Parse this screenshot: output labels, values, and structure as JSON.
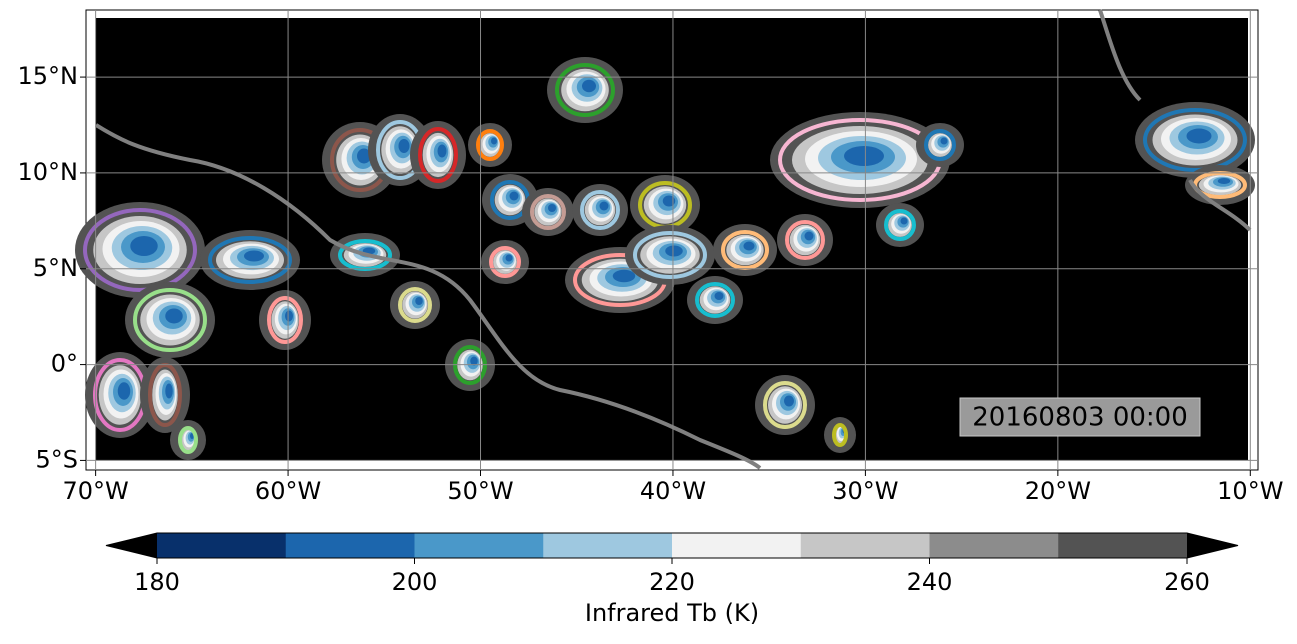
{
  "map": {
    "xlim": [
      -70.5,
      -9.6
    ],
    "ylim": [
      -5.5,
      18.5
    ],
    "xticks": [
      {
        "value": -70,
        "label": "70°W"
      },
      {
        "value": -60,
        "label": "60°W"
      },
      {
        "value": -50,
        "label": "50°W"
      },
      {
        "value": -40,
        "label": "40°W"
      },
      {
        "value": -30,
        "label": "30°W"
      },
      {
        "value": -20,
        "label": "20°W"
      },
      {
        "value": -10,
        "label": "10°W"
      }
    ],
    "yticks": [
      {
        "value": 15,
        "label": "15°N"
      },
      {
        "value": 10,
        "label": "10°N"
      },
      {
        "value": 5,
        "label": "5°N"
      },
      {
        "value": 0,
        "label": "0°"
      },
      {
        "value": -5,
        "label": "5°S"
      }
    ],
    "grid": true,
    "timestamp": "20160803 00:00"
  },
  "colorbar": {
    "label": "Infrared Tb (K)",
    "clim": [
      180,
      260
    ],
    "ticks": [
      180,
      200,
      220,
      240,
      260
    ],
    "colors": [
      "#08306b",
      "#1c66ad",
      "#4a98c9",
      "#9ec8e0",
      "#f2f2f2",
      "#c6c6c6",
      "#8c8c8c",
      "#535353"
    ],
    "under_color": "#000000",
    "over_color": "#000000"
  }
}
